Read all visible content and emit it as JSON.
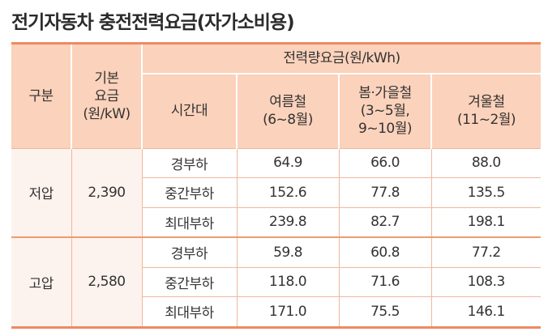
{
  "title": "전기자동차 충전전력요금(자가소비용)",
  "header": {
    "category": "구분",
    "base_fee": [
      "기본",
      "요금",
      "(원/kW)"
    ],
    "energy_fee": "전력량요금(원/kWh)",
    "time_slot": "시간대",
    "summer": [
      "여름철",
      "(6~8월)"
    ],
    "spring_fall": [
      "봄·가을철",
      "(3~5월,",
      "9~10월)"
    ],
    "winter": [
      "겨울철",
      "(11~2월)"
    ]
  },
  "groups": [
    {
      "name": "저압",
      "base": "2,390",
      "rows": [
        {
          "slot": "경부하",
          "summer": "64.9",
          "spring_fall": "66.0",
          "winter": "88.0"
        },
        {
          "slot": "중간부하",
          "summer": "152.6",
          "spring_fall": "77.8",
          "winter": "135.5"
        },
        {
          "slot": "최대부하",
          "summer": "239.8",
          "spring_fall": "82.7",
          "winter": "198.1"
        }
      ]
    },
    {
      "name": "고압",
      "base": "2,580",
      "rows": [
        {
          "slot": "경부하",
          "summer": "59.8",
          "spring_fall": "60.8",
          "winter": "77.2"
        },
        {
          "slot": "중간부하",
          "summer": "118.0",
          "spring_fall": "71.6",
          "winter": "108.3"
        },
        {
          "slot": "최대부하",
          "summer": "171.0",
          "spring_fall": "75.5",
          "winter": "146.1"
        }
      ]
    }
  ]
}
